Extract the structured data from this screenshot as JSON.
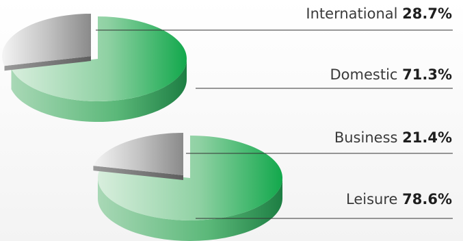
{
  "chart_data": [
    {
      "type": "pie",
      "title": "",
      "slices": [
        {
          "label": "International",
          "value": 28.7,
          "display": "28.7%",
          "color": "#9a9a9a"
        },
        {
          "label": "Domestic",
          "value": 71.3,
          "display": "71.3%",
          "color": "#21b25a"
        }
      ]
    },
    {
      "type": "pie",
      "title": "",
      "slices": [
        {
          "label": "Business",
          "value": 21.4,
          "display": "21.4%",
          "color": "#9a9a9a"
        },
        {
          "label": "Leisure",
          "value": 78.6,
          "display": "78.6%",
          "color": "#21b25a"
        }
      ]
    }
  ]
}
